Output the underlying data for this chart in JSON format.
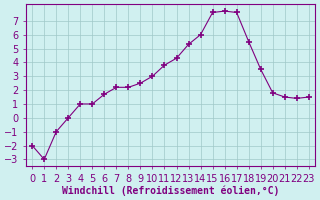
{
  "x": [
    0,
    1,
    2,
    3,
    4,
    5,
    6,
    7,
    8,
    9,
    10,
    11,
    12,
    13,
    14,
    15,
    16,
    17,
    18,
    19,
    20,
    21,
    22,
    23
  ],
  "y": [
    -2,
    -3,
    -1,
    0,
    1,
    1,
    1.7,
    2.2,
    2.2,
    2.5,
    3.0,
    3.8,
    4.3,
    5.3,
    6.0,
    7.6,
    7.7,
    7.6,
    5.5,
    3.5,
    1.8,
    1.5,
    1.4,
    1.5
  ],
  "line_color": "#800080",
  "marker": "+",
  "marker_color": "#800080",
  "bg_color": "#d0f0f0",
  "grid_color": "#a0c8c8",
  "xlabel": "Windchill (Refroidissement éolien,°C)",
  "ylabel": "",
  "xlim_min": -0.5,
  "xlim_max": 23.5,
  "ylim_min": -3.5,
  "ylim_max": 8.2,
  "yticks": [
    -3,
    -2,
    -1,
    0,
    1,
    2,
    3,
    4,
    5,
    6,
    7
  ],
  "xticks": [
    0,
    1,
    2,
    3,
    4,
    5,
    6,
    7,
    8,
    9,
    10,
    11,
    12,
    13,
    14,
    15,
    16,
    17,
    18,
    19,
    20,
    21,
    22,
    23
  ],
  "axis_color": "#800080",
  "tick_color": "#800080",
  "font_size": 7,
  "xlabel_fontsize": 7
}
